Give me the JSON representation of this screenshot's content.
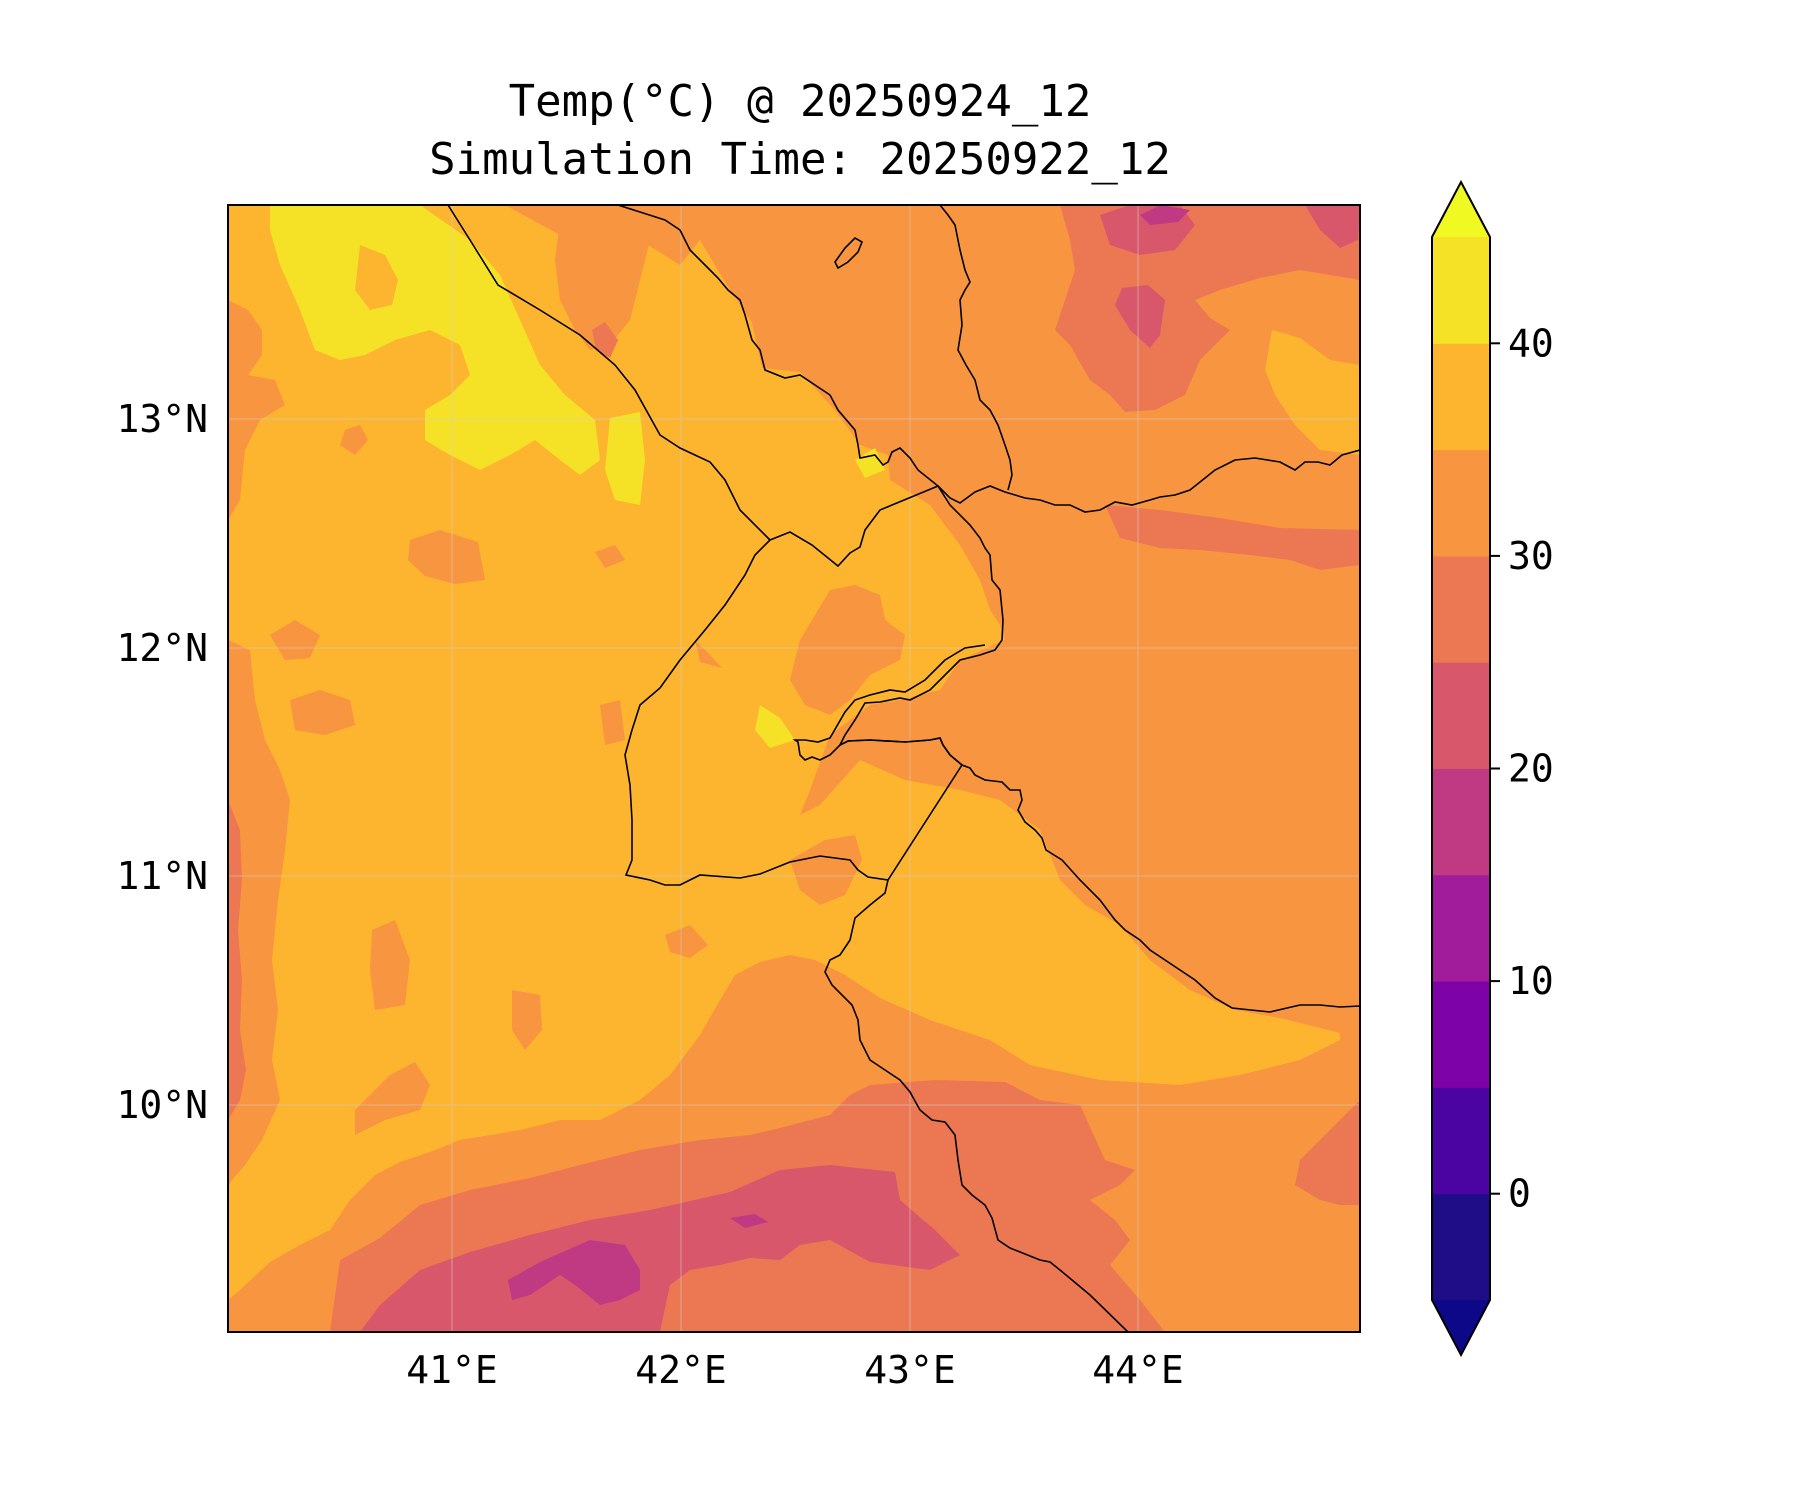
{
  "title": "Temp(°C) @ 20250924_12",
  "subtitle": "Simulation Time: 20250922_12",
  "map": {
    "region": "Horn of Africa (Djibouti / Gulf of Aden / Bab-el-Mandeb)",
    "lon_range": [
      40.0,
      44.95
    ],
    "lat_range": [
      9.0,
      13.92
    ],
    "lon_ticks": [
      "41°E",
      "42°E",
      "43°E",
      "44°E"
    ],
    "lat_ticks": [
      "13°N",
      "12°N",
      "11°N",
      "10°N"
    ],
    "colormap": "plasma",
    "gridlines": true
  },
  "colorbar": {
    "ticks": [
      "40",
      "30",
      "20",
      "10",
      "0"
    ],
    "levels": [
      -5,
      0,
      5,
      10,
      15,
      20,
      25,
      30,
      35,
      40,
      45
    ],
    "colors": [
      "#1f0c87",
      "#4b03a1",
      "#7d03a8",
      "#a11c9b",
      "#c03a83",
      "#d8576b",
      "#ec7853",
      "#f89540",
      "#fdb42f",
      "#f5e226"
    ],
    "under_color": "#0d0887",
    "over_color": "#f0f921",
    "extend": "both"
  }
}
